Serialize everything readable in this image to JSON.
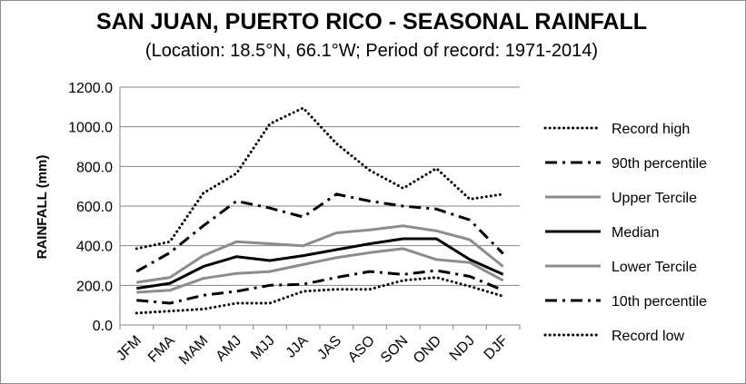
{
  "chart_data": {
    "type": "line",
    "title": "SAN JUAN, PUERTO RICO - SEASONAL RAINFALL",
    "subtitle": "(Location: 18.5°N, 66.1°W; Period of record: 1971-2014)",
    "ylabel": "RAINFALL (mm)",
    "xlabel": "",
    "ylim": [
      0,
      1200
    ],
    "yticks": [
      "0.0",
      "200.0",
      "400.0",
      "600.0",
      "800.0",
      "1000.0",
      "1200.0"
    ],
    "categories": [
      "JFM",
      "FMA",
      "MAM",
      "AMJ",
      "MJJ",
      "JJA",
      "JAS",
      "ASO",
      "SON",
      "OND",
      "NDJ",
      "DJF"
    ],
    "grid": true,
    "legend_position": "right",
    "series": [
      {
        "name": "Record high",
        "color": "#000000",
        "style": "dotted",
        "width": 3,
        "values": [
          385,
          420,
          665,
          765,
          1015,
          1095,
          915,
          780,
          690,
          790,
          635,
          660
        ]
      },
      {
        "name": "90th percentile",
        "color": "#000000",
        "style": "dash-dot",
        "width": 3,
        "values": [
          270,
          365,
          500,
          625,
          590,
          545,
          660,
          625,
          600,
          585,
          530,
          360
        ]
      },
      {
        "name": "Upper Tercile",
        "color": "#8c8c8c",
        "style": "solid",
        "width": 3,
        "values": [
          215,
          240,
          350,
          420,
          410,
          400,
          465,
          480,
          500,
          475,
          430,
          295
        ]
      },
      {
        "name": "Median",
        "color": "#000000",
        "style": "solid",
        "width": 3,
        "values": [
          185,
          210,
          295,
          345,
          325,
          350,
          380,
          410,
          435,
          435,
          330,
          255
        ]
      },
      {
        "name": "Lower Tercile",
        "color": "#8c8c8c",
        "style": "solid",
        "width": 3,
        "values": [
          165,
          175,
          235,
          260,
          270,
          305,
          340,
          365,
          385,
          330,
          315,
          225
        ]
      },
      {
        "name": "10th percentile",
        "color": "#000000",
        "style": "dash-dot",
        "width": 3,
        "values": [
          125,
          110,
          150,
          170,
          200,
          205,
          240,
          270,
          255,
          275,
          245,
          175
        ]
      },
      {
        "name": "Record low",
        "color": "#000000",
        "style": "dotted",
        "width": 3,
        "values": [
          60,
          70,
          80,
          110,
          110,
          170,
          180,
          180,
          225,
          240,
          195,
          145
        ]
      }
    ]
  }
}
